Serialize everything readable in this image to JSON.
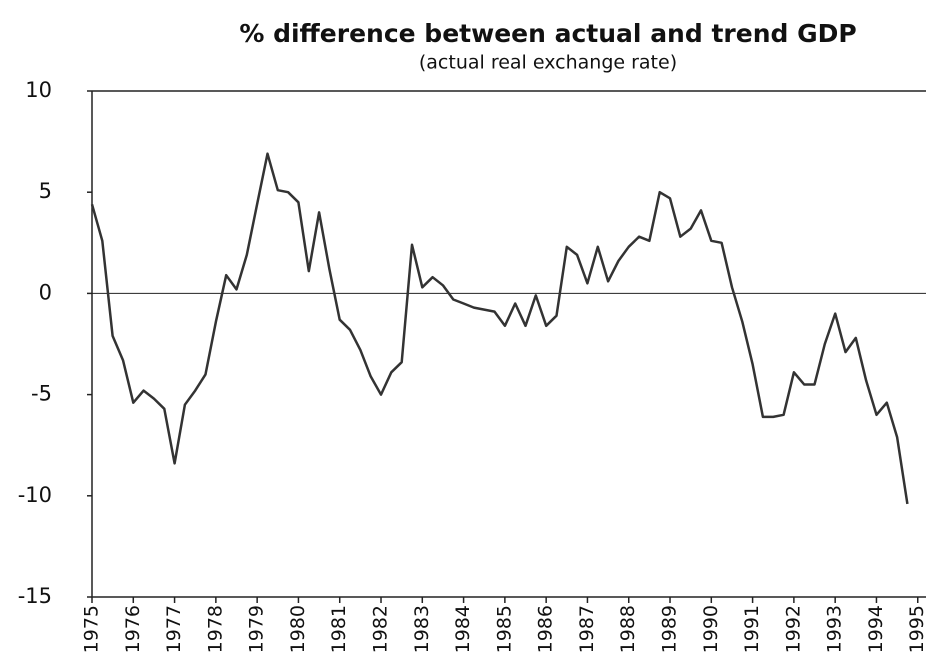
{
  "chart_data": {
    "type": "line",
    "title": "% difference between actual and trend GDP",
    "subtitle": "(actual real exchange rate)",
    "x": [
      1975.0,
      1975.25,
      1975.5,
      1975.75,
      1976.0,
      1976.25,
      1976.5,
      1976.75,
      1977.0,
      1977.25,
      1977.5,
      1977.75,
      1978.0,
      1978.25,
      1978.5,
      1978.75,
      1979.0,
      1979.25,
      1979.5,
      1979.75,
      1980.0,
      1980.25,
      1980.5,
      1980.75,
      1981.0,
      1981.25,
      1981.5,
      1981.75,
      1982.0,
      1982.25,
      1982.5,
      1982.75,
      1983.0,
      1983.25,
      1983.5,
      1983.75,
      1984.0,
      1984.25,
      1984.5,
      1984.75,
      1985.0,
      1985.25,
      1985.5,
      1985.75,
      1986.0,
      1986.25,
      1986.5,
      1986.75,
      1987.0,
      1987.25,
      1987.5,
      1987.75,
      1988.0,
      1988.25,
      1988.5,
      1988.75,
      1989.0,
      1989.25,
      1989.5,
      1989.75,
      1990.0,
      1990.25,
      1990.5,
      1990.75,
      1991.0,
      1991.25,
      1991.5,
      1991.75,
      1992.0,
      1992.25,
      1992.5,
      1992.75,
      1993.0,
      1993.25,
      1993.5,
      1993.75,
      1994.0,
      1994.25,
      1994.5,
      1994.75
    ],
    "series": [
      {
        "color": "#333333",
        "values": [
          4.4,
          2.6,
          -2.1,
          -3.3,
          -5.4,
          -4.8,
          -5.2,
          -5.7,
          -8.4,
          -5.5,
          -4.8,
          -4.0,
          -1.4,
          0.9,
          0.2,
          1.9,
          4.4,
          6.9,
          5.1,
          5.0,
          4.5,
          1.1,
          4.0,
          1.2,
          -1.3,
          -1.8,
          -2.8,
          -4.1,
          -5.0,
          -3.9,
          -3.4,
          2.4,
          0.3,
          0.8,
          0.4,
          -0.3,
          -0.5,
          -0.7,
          -0.8,
          -0.9,
          -1.6,
          -0.5,
          -1.6,
          -0.1,
          -1.6,
          -1.1,
          2.3,
          1.9,
          0.5,
          2.3,
          0.6,
          1.6,
          2.3,
          2.8,
          2.6,
          5.0,
          4.7,
          2.8,
          3.2,
          4.1,
          2.6,
          2.5,
          0.3,
          -1.4,
          -3.5,
          -6.1,
          -6.1,
          -6.0,
          -3.9,
          -4.5,
          -4.5,
          -2.5,
          -1.0,
          -2.9,
          -2.2,
          -4.3,
          -6.0,
          -5.4,
          -7.1,
          -10.4
        ]
      }
    ],
    "xlim": [
      1975,
      1995.2
    ],
    "xticks": [
      1975,
      1976,
      1977,
      1978,
      1979,
      1980,
      1981,
      1982,
      1983,
      1984,
      1985,
      1986,
      1987,
      1988,
      1989,
      1990,
      1991,
      1992,
      1993,
      1994,
      1995
    ],
    "ylim": [
      -15,
      10
    ],
    "yticks": [
      -15,
      -10,
      -5,
      0,
      5,
      10
    ],
    "hline": 0
  }
}
